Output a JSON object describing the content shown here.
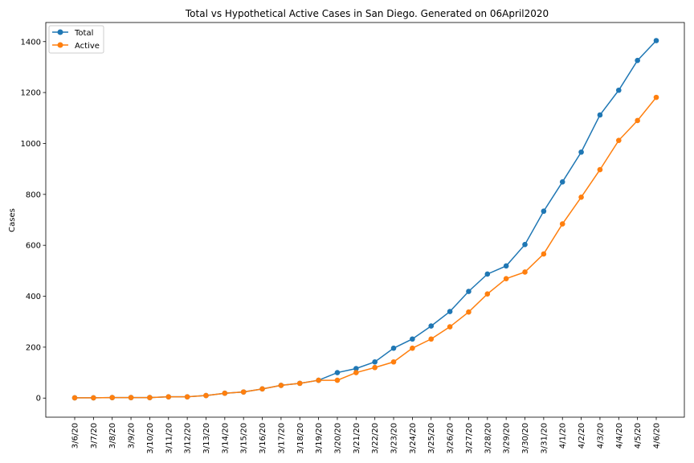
{
  "chart_data": {
    "type": "line",
    "title": "Total vs Hypothetical Active Cases in San Diego. Generated on 06April2020",
    "xlabel": "",
    "ylabel": "Cases",
    "categories": [
      "3/6/20",
      "3/7/20",
      "3/8/20",
      "3/9/20",
      "3/10/20",
      "3/11/20",
      "3/12/20",
      "3/13/20",
      "3/14/20",
      "3/15/20",
      "3/16/20",
      "3/17/20",
      "3/18/20",
      "3/19/20",
      "3/20/20",
      "3/21/20",
      "3/22/20",
      "3/23/20",
      "3/24/20",
      "3/25/20",
      "3/26/20",
      "3/27/20",
      "3/28/20",
      "3/29/20",
      "3/30/20",
      "3/31/20",
      "4/1/20",
      "4/2/20",
      "4/3/20",
      "4/4/20",
      "4/5/20",
      "4/6/20"
    ],
    "yticks": [
      0,
      200,
      400,
      600,
      800,
      1000,
      1200,
      1400
    ],
    "ylim": [
      -75,
      1475
    ],
    "grid": false,
    "legend_position": "top-left",
    "series": [
      {
        "name": "Total",
        "color": "#1f77b4",
        "values": [
          1,
          1,
          2,
          2,
          2,
          5,
          5,
          10,
          19,
          24,
          36,
          50,
          58,
          70,
          100,
          116,
          142,
          196,
          232,
          283,
          340,
          419,
          487,
          519,
          603,
          734,
          849,
          966,
          1112,
          1209,
          1326,
          1404
        ]
      },
      {
        "name": "Active",
        "color": "#ff7f0e",
        "values": [
          1,
          1,
          2,
          2,
          2,
          5,
          5,
          10,
          19,
          24,
          36,
          50,
          58,
          70,
          70,
          100,
          120,
          142,
          196,
          232,
          280,
          338,
          409,
          469,
          495,
          566,
          684,
          789,
          897,
          1012,
          1090,
          1181
        ]
      }
    ]
  }
}
